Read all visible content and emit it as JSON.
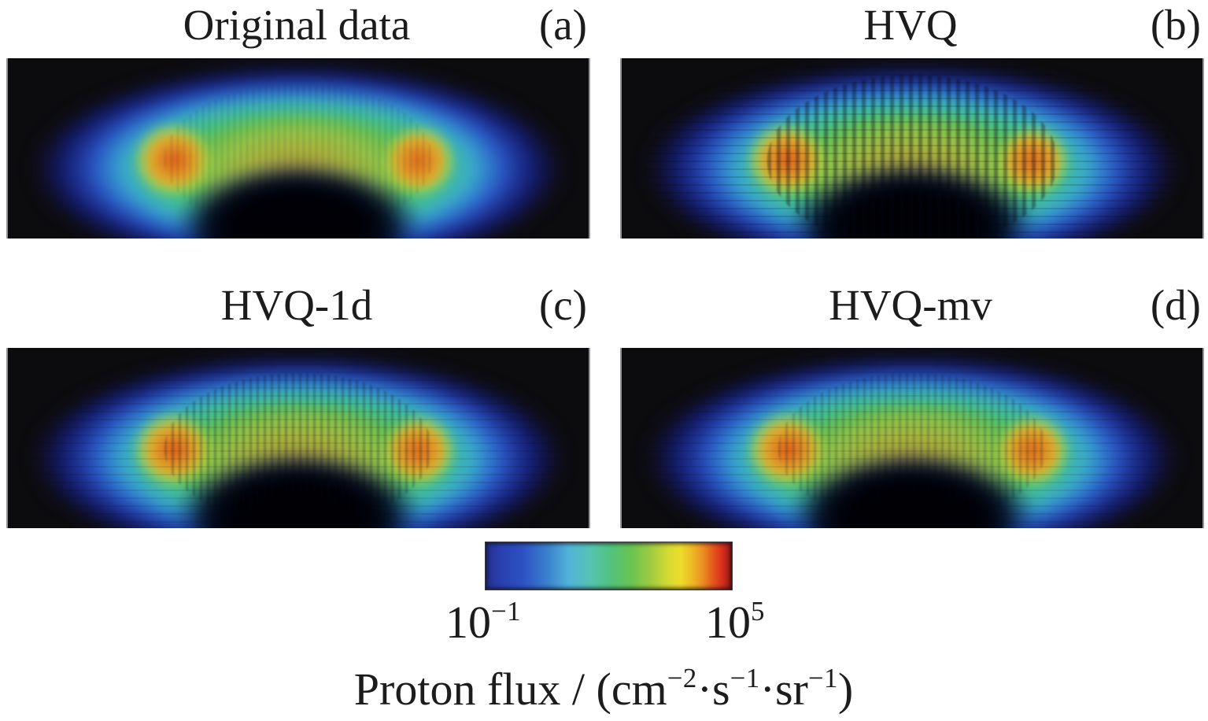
{
  "figure": {
    "panels": [
      {
        "title": "Original data",
        "tag": "(a)"
      },
      {
        "title": "HVQ",
        "tag": "(b)"
      },
      {
        "title": "HVQ-1d",
        "tag": "(c)"
      },
      {
        "title": "HVQ-mv",
        "tag": "(d)"
      }
    ],
    "colorbar": {
      "tick_min_segments": [
        {
          "t": "10"
        },
        {
          "t": "−1",
          "sup": true
        }
      ],
      "tick_max_segments": [
        {
          "t": "10"
        },
        {
          "t": "5",
          "sup": true
        }
      ],
      "caption_segments": [
        {
          "t": "Proton flux / (cm"
        },
        {
          "t": "−2",
          "sup": true
        },
        {
          "t": "·s"
        },
        {
          "t": "−1",
          "sup": true
        },
        {
          "t": "·sr"
        },
        {
          "t": "−1",
          "sup": true
        },
        {
          "t": ")"
        }
      ]
    }
  },
  "chart_data": {
    "type": "heatmap",
    "title": "Comparison of volumetric proton-flux renderings: original data vs. HVQ compression variants",
    "layout": "2x2 grid of volume renderings of a planetary radiation belt (crescent torus on black background) with shared horizontal colorbar below",
    "panels": [
      {
        "tag": "(a)",
        "title": "Original data",
        "artifacts": "none — smooth rendering"
      },
      {
        "tag": "(b)",
        "title": "HVQ",
        "artifacts": "strong vertical striping / blocky quantization artifacts"
      },
      {
        "tag": "(c)",
        "title": "HVQ-1d",
        "artifacts": "moderate vertical striping artifacts"
      },
      {
        "tag": "(d)",
        "title": "HVQ-mv",
        "artifacts": "mild vertical striping artifacts, closest to original"
      }
    ],
    "colorbar": {
      "scale": "log",
      "min": 0.1,
      "max": 100000,
      "min_label": "10^−1",
      "max_label": "10^5",
      "label": "Proton flux / (cm^−2·s^−1·sr^−1)",
      "colormap": "jet (dark blue → blue → cyan → green → yellow → orange → red → dark red)",
      "colors": [
        "#262f8c",
        "#2c52c4",
        "#3a7fce",
        "#52b4d8",
        "#55c4ae",
        "#52c27c",
        "#67c451",
        "#9ecb40",
        "#eedd2a",
        "#ec9022",
        "#da2e1c",
        "#8e1a12"
      ]
    },
    "rendering_features": {
      "belt_outer_halo": "#1e2f95",
      "belt_mid_ring_cyan": "#38a9cc",
      "belt_green": "#5cc156",
      "central_dome": "#a8b43e",
      "hotspot_cores": "#dc5f1b",
      "background": "#0c0c0f"
    }
  }
}
